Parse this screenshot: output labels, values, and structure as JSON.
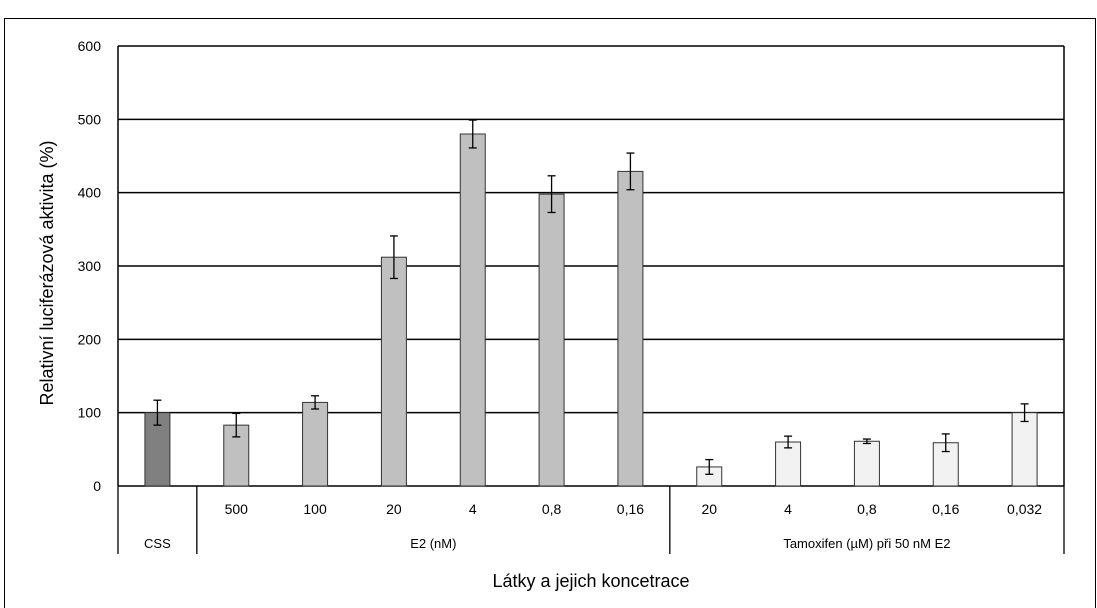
{
  "chart_data": {
    "type": "bar",
    "xlabel": "Látky a jejich koncetrace",
    "ylabel": "Relativní luciferázová aktivita (%)",
    "ylim": [
      0,
      600
    ],
    "yticks": [
      0,
      100,
      200,
      300,
      400,
      500,
      600
    ],
    "grid": true,
    "categories": [
      "",
      "500",
      "100",
      "20",
      "4",
      "0,8",
      "0,16",
      "20",
      "4",
      "0,8",
      "0,16",
      "0,032"
    ],
    "values": [
      100,
      83,
      114,
      312,
      480,
      398,
      429,
      26,
      60,
      61,
      59,
      100
    ],
    "errors": [
      17,
      16,
      9,
      29,
      19,
      25,
      25,
      10,
      8,
      3,
      12,
      12
    ],
    "groups": [
      {
        "label": "CSS",
        "start": 0,
        "end": 0,
        "color": "#808080"
      },
      {
        "label": "E2 (nM)",
        "start": 1,
        "end": 6,
        "color": "#c0c0c0"
      },
      {
        "label": "Tamoxifen (µM) při 50 nM E2",
        "start": 7,
        "end": 11,
        "color": "#f2f2f2"
      }
    ]
  }
}
